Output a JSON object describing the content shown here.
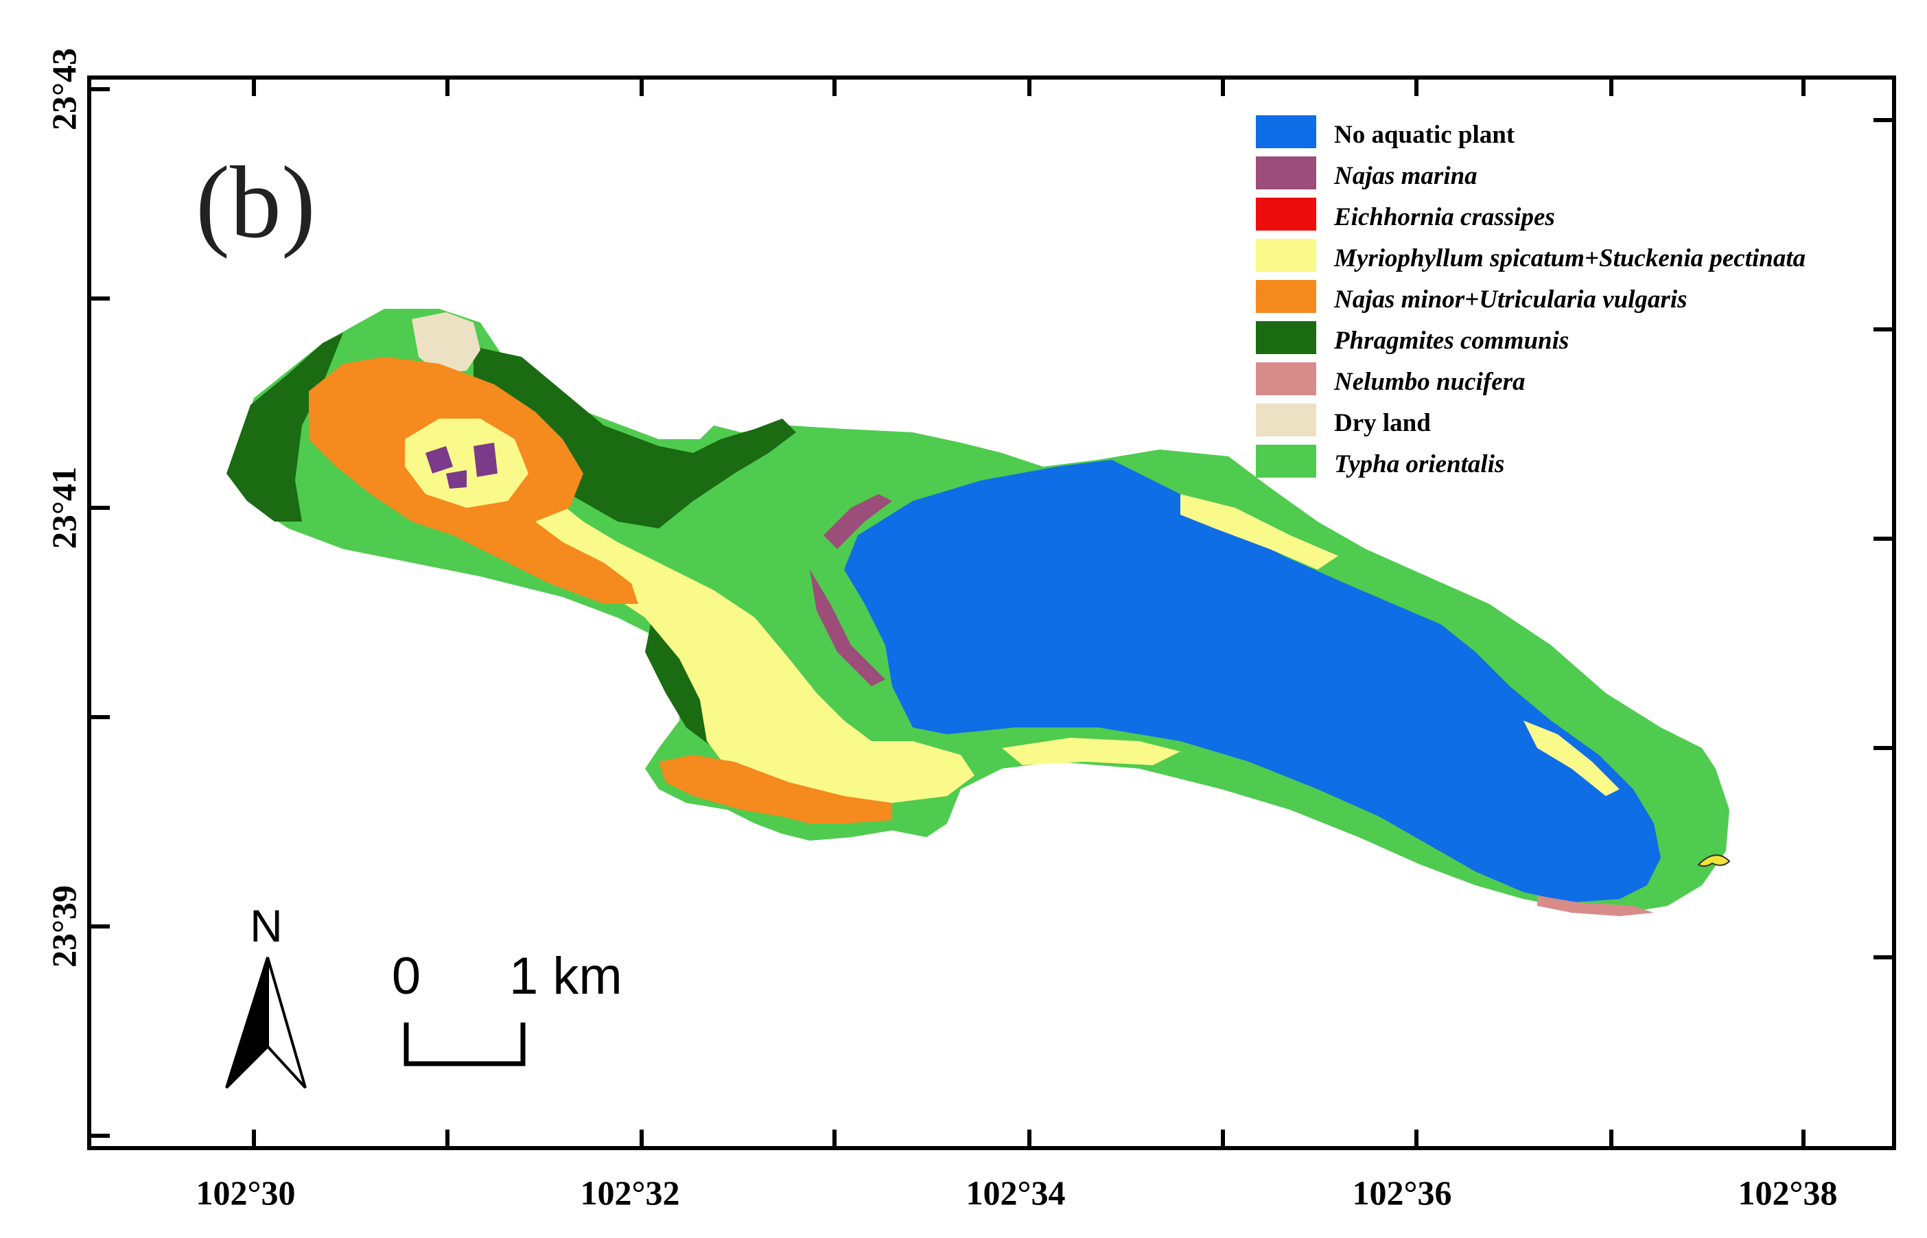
{
  "panel_label": "(b)",
  "x_axis": {
    "ticks": [
      "102°30",
      "102°32",
      "102°34",
      "102°36",
      "102°38"
    ]
  },
  "y_axis": {
    "ticks": [
      "23°43",
      "23°41",
      "23°39"
    ]
  },
  "legend": {
    "entries": [
      {
        "label": "No aquatic plant",
        "color": "#0f6de6",
        "italic": false
      },
      {
        "label": "Najas marina",
        "color": "#9c4d7a",
        "italic": true
      },
      {
        "label": "Eichhornia crassipes",
        "color": "#ee0d0d",
        "italic": true
      },
      {
        "label": "Myriophyllum spicatum+Stuckenia pectinata",
        "color": "#fafa8a",
        "italic": true
      },
      {
        "label": "Najas minor+Utricularia vulgaris",
        "color": "#f58a1f",
        "italic": true
      },
      {
        "label": "Phragmites communis",
        "color": "#1a6b12",
        "italic": true
      },
      {
        "label": "Nelumbo nucifera",
        "color": "#d88c8a",
        "italic": true
      },
      {
        "label": "Dry land",
        "color": "#ede1c3",
        "italic": false
      },
      {
        "label": "Typha orientalis",
        "color": "#4fcb4f",
        "italic": true
      }
    ]
  },
  "north_arrow": {
    "label": "N"
  },
  "scale_bar": {
    "start": "0",
    "end": "1 km"
  }
}
